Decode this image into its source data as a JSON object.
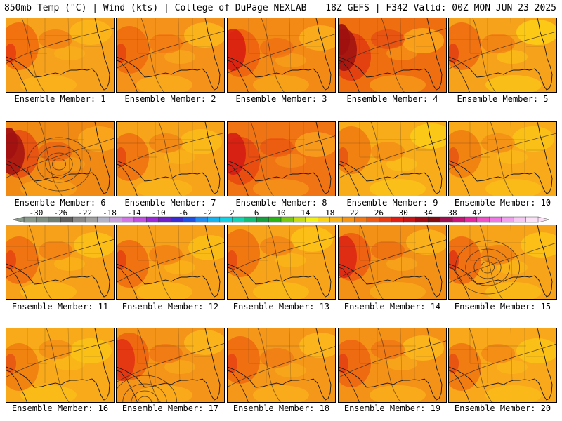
{
  "header": {
    "left": "850mb Temp (°C) | Wind (kts) | College of DuPage NEXLAB",
    "right": "18Z GEFS | F342 Valid: 00Z MON JUN 23 2025"
  },
  "members": [
    {
      "label": "Ensemble Member: 1",
      "base": "#f7a21c",
      "warm": "#f06a0c",
      "hot": "#e23010",
      "cool": "#fbb91a",
      "heat": 1,
      "low": false
    },
    {
      "label": "Ensemble Member: 2",
      "base": "#f5921a",
      "warm": "#ef6a0e",
      "hot": "#e23a10",
      "cool": "#fbb81c",
      "heat": 1,
      "low": false
    },
    {
      "label": "Ensemble Member: 3",
      "base": "#f38a16",
      "warm": "#ee5e0e",
      "hot": "#d81a12",
      "cool": "#fab01c",
      "heat": 2,
      "low": false
    },
    {
      "label": "Ensemble Member: 4",
      "base": "#ef6f10",
      "warm": "#e23a12",
      "hot": "#9e1010",
      "cool": "#faa81c",
      "heat": 3,
      "low": false
    },
    {
      "label": "Ensemble Member: 5",
      "base": "#f6a21a",
      "warm": "#ee6a10",
      "hot": "#e03414",
      "cool": "#fcd016",
      "heat": 1,
      "low": false
    },
    {
      "label": "Ensemble Member: 6",
      "base": "#f08a14",
      "warm": "#e64a10",
      "hot": "#a21212",
      "cool": "#faa81c",
      "heat": 3,
      "low": true
    },
    {
      "label": "Ensemble Member: 7",
      "base": "#f7a41a",
      "warm": "#ef7010",
      "hot": "#e43c12",
      "cool": "#fbbd1a",
      "heat": 1,
      "low": false
    },
    {
      "label": "Ensemble Member: 8",
      "base": "#f07414",
      "warm": "#e8460f",
      "hot": "#d21a14",
      "cool": "#f8a01c",
      "heat": 2,
      "low": false
    },
    {
      "label": "Ensemble Member: 9",
      "base": "#f8ac1a",
      "warm": "#f07a10",
      "hot": "#e44812",
      "cool": "#fccc18",
      "heat": 1,
      "low": false
    },
    {
      "label": "Ensemble Member: 10",
      "base": "#f8aa1a",
      "warm": "#f07c10",
      "hot": "#e44a12",
      "cool": "#fcc418",
      "heat": 1,
      "low": false
    },
    {
      "label": "Ensemble Member: 11",
      "base": "#f7a01a",
      "warm": "#ef6c10",
      "hot": "#e23a12",
      "cool": "#fcc218",
      "heat": 1,
      "low": false
    },
    {
      "label": "Ensemble Member: 12",
      "base": "#f7a01a",
      "warm": "#ef6a10",
      "hot": "#e23612",
      "cool": "#fcc018",
      "heat": 1,
      "low": false
    },
    {
      "label": "Ensemble Member: 13",
      "base": "#f8a41a",
      "warm": "#f07010",
      "hot": "#e44012",
      "cool": "#fcc418",
      "heat": 1,
      "low": false
    },
    {
      "label": "Ensemble Member: 14",
      "base": "#f39016",
      "warm": "#ec5a10",
      "hot": "#dc2414",
      "cool": "#fab61c",
      "heat": 2,
      "low": false
    },
    {
      "label": "Ensemble Member: 15",
      "base": "#f7a41a",
      "warm": "#ee6810",
      "hot": "#dc2614",
      "cool": "#fcc418",
      "heat": 1,
      "low": true
    },
    {
      "label": "Ensemble Member: 16",
      "base": "#f8aa1a",
      "warm": "#f07c10",
      "hot": "#e44a12",
      "cool": "#fcc418",
      "heat": 1,
      "low": false
    },
    {
      "label": "Ensemble Member: 17",
      "base": "#f49418",
      "warm": "#ed6210",
      "hot": "#e23014",
      "cool": "#fbb81c",
      "heat": 2,
      "low": true
    },
    {
      "label": "Ensemble Member: 18",
      "base": "#f5981a",
      "warm": "#ee6810",
      "hot": "#e43a12",
      "cool": "#fbb81c",
      "heat": 1,
      "low": false
    },
    {
      "label": "Ensemble Member: 19",
      "base": "#f49218",
      "warm": "#ed6410",
      "hot": "#e23812",
      "cool": "#fbba1c",
      "heat": 1,
      "low": false
    },
    {
      "label": "Ensemble Member: 20",
      "base": "#f8a81a",
      "warm": "#f07410",
      "hot": "#e44412",
      "cool": "#fcc418",
      "heat": 1,
      "low": false
    }
  ],
  "colorbar": {
    "labels": [
      "-30",
      "-26",
      "-22",
      "-18",
      "-14",
      "-10",
      "-6",
      "-2",
      "2",
      "6",
      "10",
      "14",
      "18",
      "22",
      "26",
      "30",
      "34",
      "38",
      "42"
    ],
    "colors": [
      "#8a9a8c",
      "#7f8f82",
      "#6e7e72",
      "#606060",
      "#8a8a8a",
      "#a0a0a0",
      "#b4b4c8",
      "#c8a0dc",
      "#d278e6",
      "#c050e0",
      "#9a28d8",
      "#7020c8",
      "#3a2ad2",
      "#1e50e6",
      "#1e8cf0",
      "#14b4f0",
      "#12d2e6",
      "#14d2b4",
      "#12be78",
      "#14a03c",
      "#28b414",
      "#78c814",
      "#c8dc14",
      "#f0f014",
      "#fcd214",
      "#fcb414",
      "#f89614",
      "#f47814",
      "#ee5a14",
      "#e83c14",
      "#e01e14",
      "#c81414",
      "#a00a14",
      "#800a10",
      "#a01050",
      "#c81478",
      "#e628a0",
      "#f050c8",
      "#f078e6",
      "#f4a0f0",
      "#f8c8f4",
      "#fce0f8"
    ]
  }
}
